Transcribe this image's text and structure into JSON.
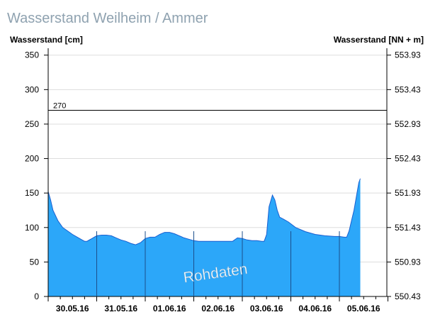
{
  "chart_data": {
    "type": "area",
    "title": "Wasserstand Weilheim / Ammer",
    "ylabel": "Wasserstand [cm]",
    "ylabel_right": "Wasserstand [NN + m]",
    "ylim": [
      0,
      360
    ],
    "yticks": [
      0,
      50,
      100,
      150,
      200,
      250,
      300,
      350
    ],
    "yticks_right": [
      "550.43",
      "550.93",
      "551.43",
      "551.93",
      "552.43",
      "552.93",
      "553.43",
      "553.93"
    ],
    "xlim": [
      0,
      7
    ],
    "xtick_labels": [
      "30.05.16",
      "31.05.16",
      "01.06.16",
      "02.06.16",
      "03.06.16",
      "04.06.16",
      "05.06.16"
    ],
    "reference_line": {
      "value": 270,
      "label": "270"
    },
    "watermark": "Rohdaten",
    "grid": true,
    "color": "#2ca7f9",
    "series": [
      {
        "x": [
          0,
          0.05,
          0.1,
          0.2,
          0.3,
          0.4,
          0.5,
          0.6,
          0.7,
          0.75,
          0.8,
          0.9,
          1.0,
          1.1,
          1.2,
          1.3,
          1.4,
          1.5,
          1.6,
          1.7,
          1.8,
          1.9,
          2.0,
          2.1,
          2.2,
          2.3,
          2.4,
          2.5,
          2.6,
          2.7,
          2.8,
          2.9,
          3.0,
          3.1,
          3.2,
          3.3,
          3.4,
          3.5,
          3.6,
          3.7,
          3.8,
          3.9,
          4.0,
          4.1,
          4.2,
          4.3,
          4.4,
          4.45,
          4.5,
          4.55,
          4.62,
          4.67,
          4.72,
          4.77,
          4.85,
          4.95,
          5.1,
          5.3,
          5.5,
          5.7,
          5.9,
          6.0,
          6.1,
          6.15,
          6.2,
          6.25,
          6.3,
          6.35,
          6.4,
          6.43
        ],
        "values": [
          152,
          140,
          125,
          110,
          100,
          95,
          90,
          86,
          82,
          80,
          80,
          84,
          88,
          89,
          89,
          88,
          85,
          82,
          80,
          77,
          75,
          78,
          84,
          86,
          86,
          90,
          93,
          93,
          91,
          88,
          85,
          83,
          81,
          80,
          80,
          80,
          80,
          80,
          80,
          80,
          80,
          85,
          84,
          82,
          81,
          81,
          80,
          80,
          90,
          130,
          147,
          140,
          125,
          115,
          112,
          108,
          100,
          94,
          90,
          88,
          87,
          87,
          86,
          86,
          95,
          110,
          125,
          145,
          165,
          171
        ]
      }
    ]
  }
}
